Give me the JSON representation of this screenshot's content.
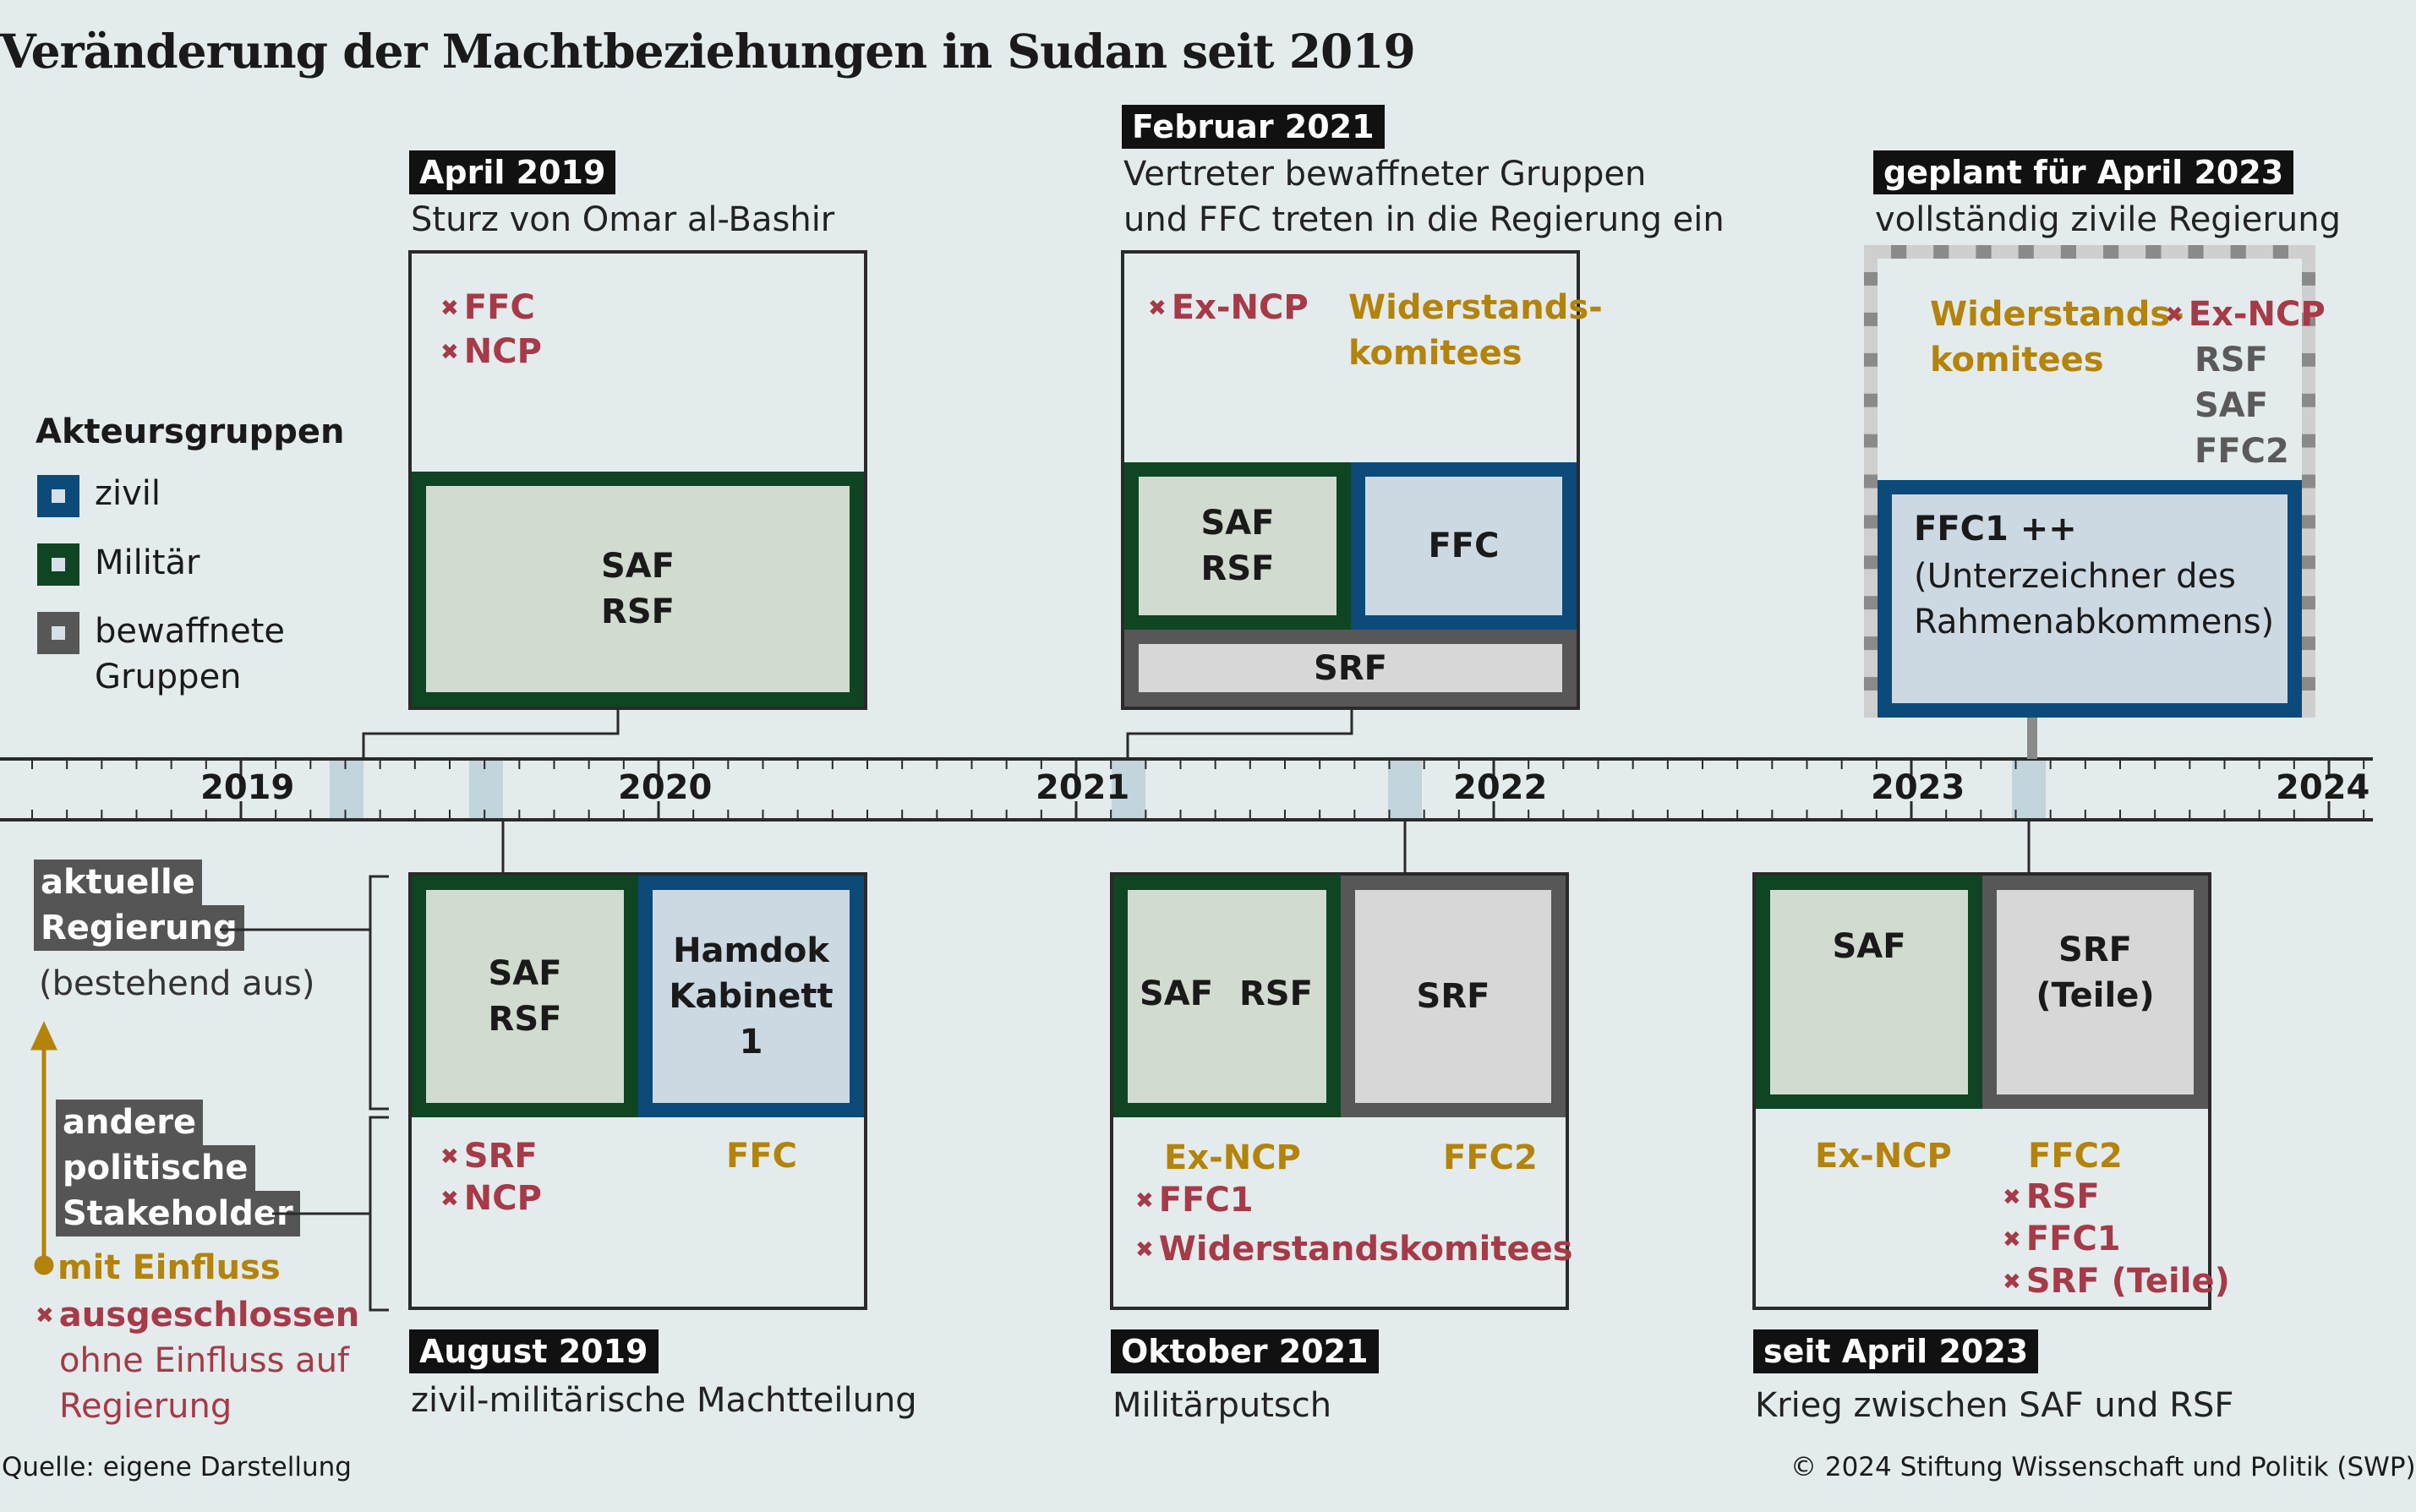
{
  "title": "Veränderung der Machtbeziehungen in Sudan seit 2019",
  "legend": {
    "heading": "Akteursgruppen",
    "items": [
      {
        "label": "zivil",
        "color": "#0c4a79"
      },
      {
        "label": "Militär",
        "color": "#0f4522"
      },
      {
        "label_line1": "bewaffnete",
        "label_line2": "Gruppen",
        "color": "#575757"
      }
    ]
  },
  "key": {
    "current_gov_line1": "aktuelle",
    "current_gov_line2": "Regierung",
    "current_gov_sub": "(bestehend aus)",
    "other_line1": "andere",
    "other_line2": "politische",
    "other_line3": "Stakeholder",
    "influence": "mit Einfluss",
    "excluded": "ausgeschlossen",
    "no_influence_line1": "ohne Einfluss auf",
    "no_influence_line2": "Regierung"
  },
  "timeline": {
    "years": [
      "2019",
      "2020",
      "2021",
      "2022",
      "2023",
      "2024"
    ]
  },
  "events": {
    "apr2019": {
      "date": "April 2019",
      "desc": "Sturz von Omar al-Bashir",
      "excluded": [
        "FFC",
        "NCP"
      ],
      "mil_line1": "SAF",
      "mil_line2": "RSF"
    },
    "feb2021": {
      "date": "Februar 2021",
      "desc_line1": "Vertreter bewaffneter Gruppen",
      "desc_line2": "und FFC treten in die Regierung ein",
      "excluded": [
        "Ex-NCP"
      ],
      "influence_line1": "Widerstands-",
      "influence_line2": "komitees",
      "mil_line1": "SAF",
      "mil_line2": "RSF",
      "civ": "FFC",
      "arm": "SRF"
    },
    "apr2023plan": {
      "date": "geplant für April 2023",
      "desc": "vollständig zivile Regierung",
      "influence_line1": "Widerstands-",
      "influence_line2": "komitees",
      "excluded": [
        "Ex-NCP"
      ],
      "others": [
        "RSF",
        "SAF",
        "FFC2"
      ],
      "civ_line1": "FFC1 ++",
      "civ_line2": "(Unterzeichner des",
      "civ_line3": "Rahmenabkommens)"
    },
    "aug2019": {
      "date": "August 2019",
      "desc": "zivil-militärische Machtteilung",
      "mil_line1": "SAF",
      "mil_line2": "RSF",
      "civ_line1": "Hamdok",
      "civ_line2": "Kabinett 1",
      "excluded": [
        "SRF",
        "NCP"
      ],
      "influence": "FFC"
    },
    "oct2021": {
      "date": "Oktober 2021",
      "desc": "Militärputsch",
      "mil_a": "SAF",
      "mil_b": "RSF",
      "arm": "SRF",
      "influence_mil": "Ex-NCP",
      "influence_arm": "FFC2",
      "excluded": [
        "FFC1",
        "Widerstandskomitees"
      ]
    },
    "apr2023": {
      "date": "seit April 2023",
      "desc": "Krieg zwischen SAF und RSF",
      "mil": "SAF",
      "arm_line1": "SRF",
      "arm_line2": "(Teile)",
      "influence_mil": "Ex-NCP",
      "influence_arm": "FFC2",
      "excluded": [
        "RSF",
        "FFC1",
        "SRF (Teile)"
      ]
    }
  },
  "footer": {
    "source": "Quelle: eigene Darstellung",
    "copyright": "© 2024 Stiftung Wissenschaft und Politik (SWP)"
  },
  "colors": {
    "civil": "#0c4a79",
    "military": "#0f4522",
    "armed": "#575757",
    "excluded": "#a63a48",
    "influence": "#b3830b",
    "background": "#e4ebec"
  }
}
